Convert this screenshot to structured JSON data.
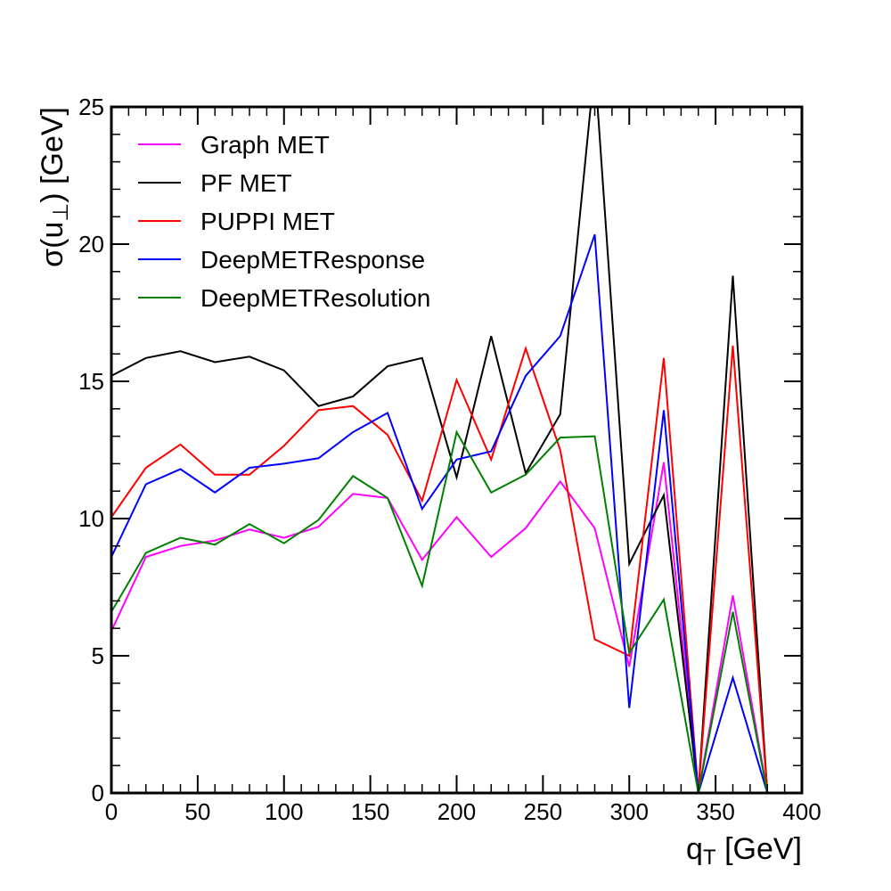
{
  "chart_data": {
    "type": "line",
    "xlabel": "q",
    "xlabel_sub": "T",
    "xlabel_unit": " [GeV]",
    "ylabel": "σ(u",
    "ylabel_sub": "⊥",
    "ylabel_unit": ") [GeV]",
    "xlim": [
      0,
      400
    ],
    "ylim": [
      0,
      25
    ],
    "x_ticks": [
      0,
      50,
      100,
      150,
      200,
      250,
      300,
      350,
      400
    ],
    "y_ticks": [
      0,
      5,
      10,
      15,
      20,
      25
    ],
    "x_tick_labels": [
      "0",
      "50",
      "100",
      "150",
      "200",
      "250",
      "300",
      "350",
      "400"
    ],
    "y_tick_labels": [
      "0",
      "5",
      "10",
      "15",
      "20",
      "25"
    ],
    "grid": false,
    "legend_position": "top-left",
    "x": [
      0,
      20,
      40,
      60,
      80,
      100,
      120,
      140,
      160,
      180,
      200,
      220,
      240,
      260,
      280,
      300,
      320,
      340,
      360,
      380
    ],
    "series": [
      {
        "name": "Graph MET",
        "color": "#ff00ff",
        "values": [
          5.9,
          8.6,
          9.0,
          9.2,
          9.6,
          9.3,
          9.7,
          10.9,
          10.75,
          8.5,
          10.05,
          8.6,
          9.65,
          11.35,
          9.65,
          4.6,
          12.05,
          0,
          7.2,
          0
        ]
      },
      {
        "name": "PF MET",
        "color": "#000000",
        "values": [
          15.2,
          15.85,
          16.1,
          15.7,
          15.9,
          15.4,
          14.1,
          14.45,
          15.55,
          15.85,
          11.5,
          16.65,
          11.65,
          13.8,
          26.5,
          8.35,
          10.85,
          0,
          18.85,
          0
        ]
      },
      {
        "name": "PUPPI MET",
        "color": "#ff0000",
        "values": [
          10.05,
          11.85,
          12.7,
          11.6,
          11.6,
          12.65,
          13.95,
          14.1,
          13.05,
          10.65,
          15.05,
          12.15,
          16.2,
          12.5,
          5.6,
          5.0,
          15.85,
          0,
          16.3,
          0
        ]
      },
      {
        "name": "DeepMETResponse",
        "color": "#0000ff",
        "values": [
          8.6,
          11.25,
          11.8,
          10.95,
          11.85,
          12.0,
          12.2,
          13.15,
          13.85,
          10.35,
          12.15,
          12.45,
          15.2,
          16.65,
          20.35,
          3.1,
          13.95,
          0,
          4.2,
          0
        ]
      },
      {
        "name": "DeepMETResolution",
        "color": "#008000",
        "values": [
          6.6,
          8.75,
          9.3,
          9.05,
          9.8,
          9.1,
          9.95,
          11.55,
          10.75,
          7.55,
          13.15,
          10.95,
          11.6,
          12.95,
          13.0,
          5.1,
          7.05,
          0,
          6.6,
          0
        ]
      }
    ]
  }
}
